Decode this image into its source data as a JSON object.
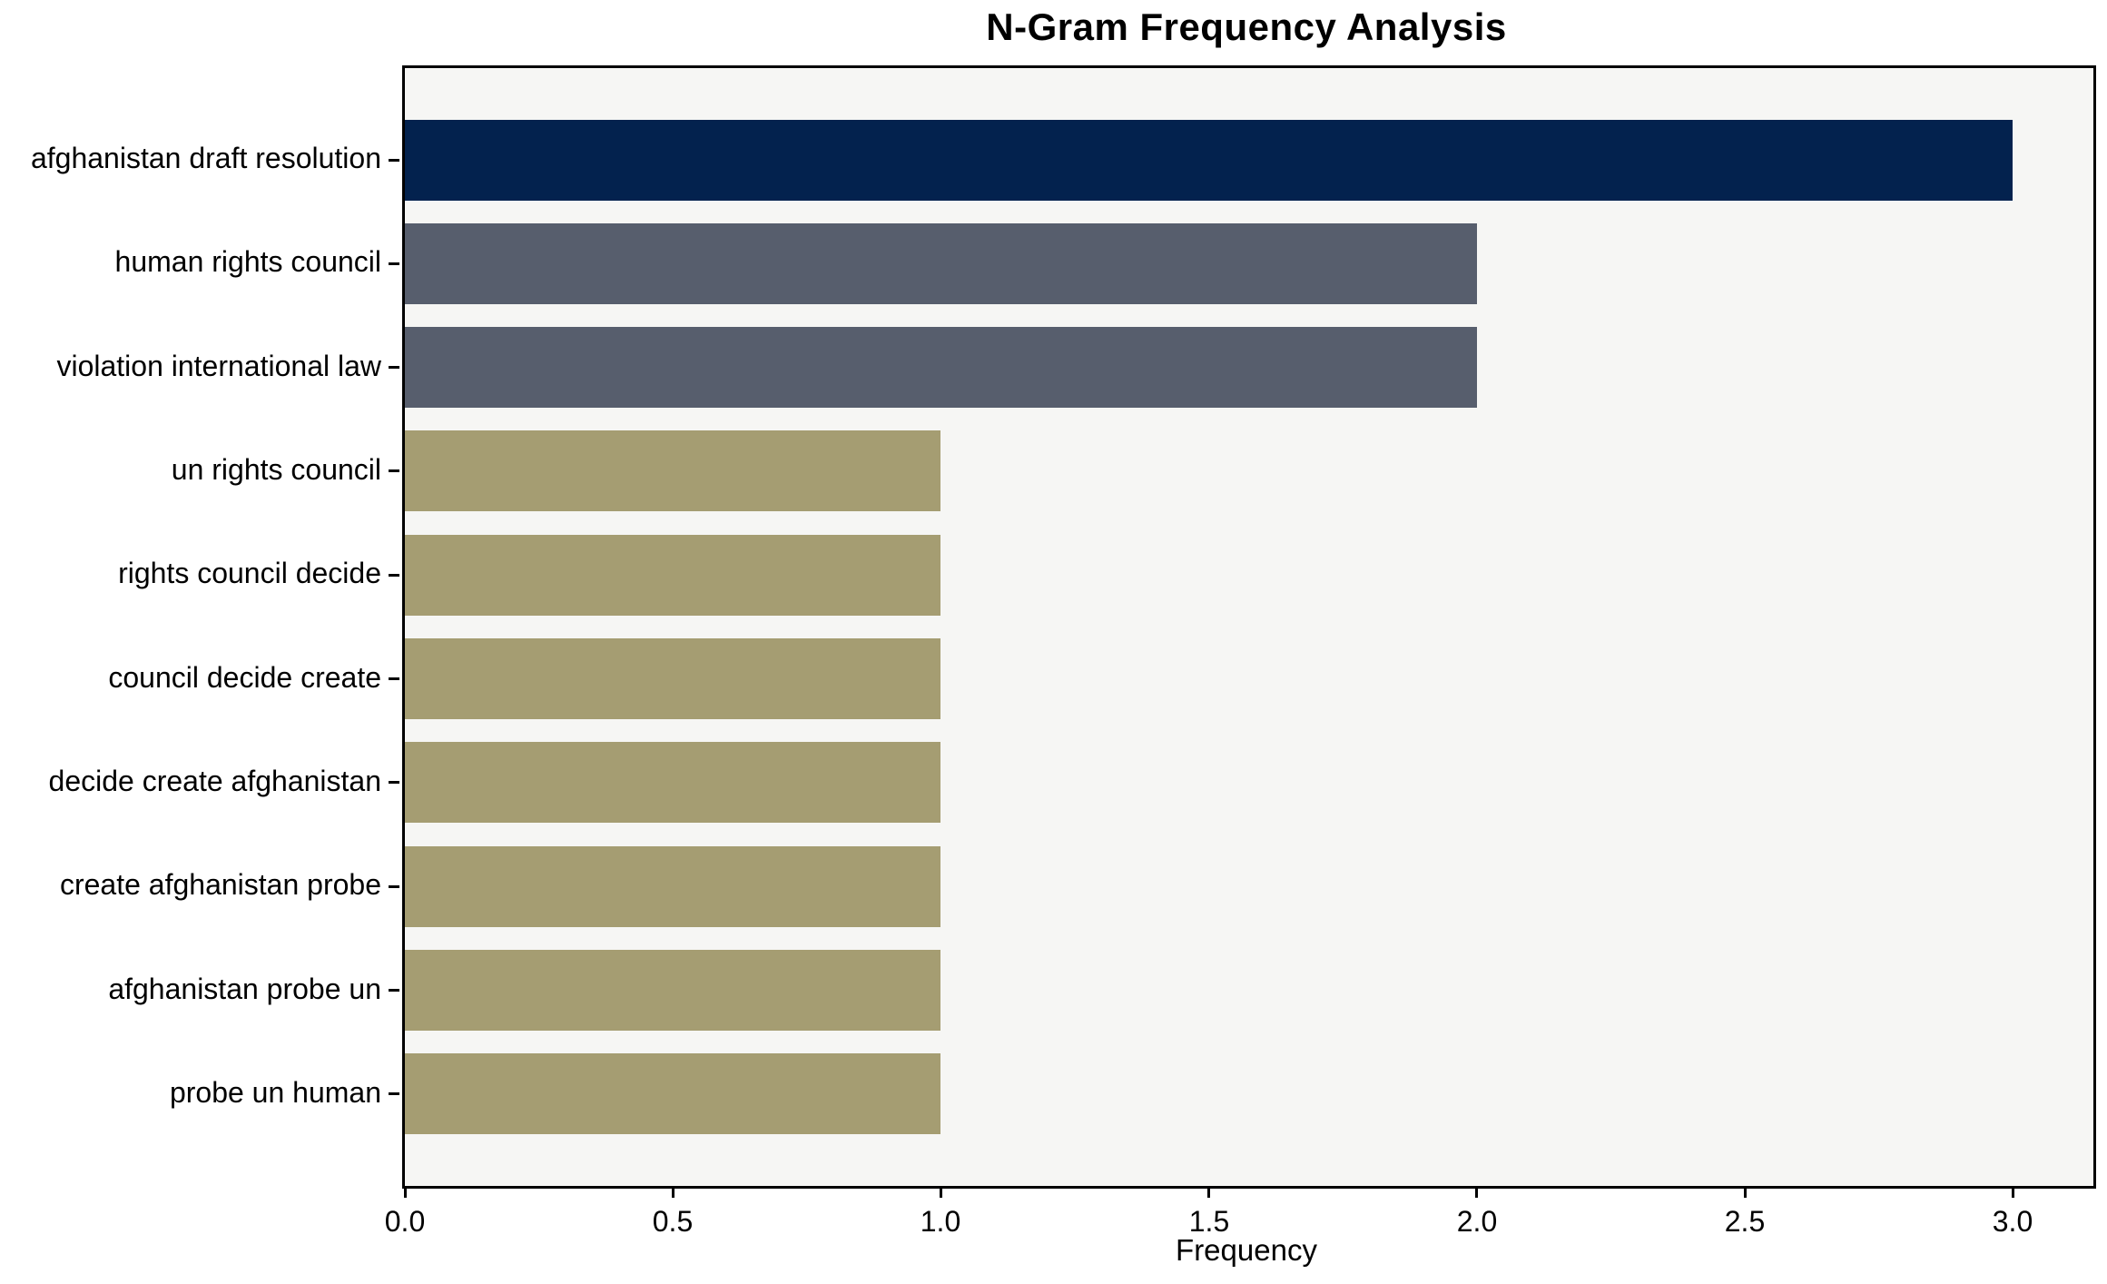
{
  "chart_data": {
    "type": "bar",
    "orientation": "horizontal",
    "title": "N-Gram Frequency Analysis",
    "xlabel": "Frequency",
    "ylabel": "",
    "categories": [
      "afghanistan draft resolution",
      "human rights council",
      "violation international law",
      "un rights council",
      "rights council decide",
      "council decide create",
      "decide create afghanistan",
      "create afghanistan probe",
      "afghanistan probe un",
      "probe un human"
    ],
    "values": [
      3,
      2,
      2,
      1,
      1,
      1,
      1,
      1,
      1,
      1
    ],
    "bar_colors": [
      "#03224e",
      "#575e6d",
      "#575e6d",
      "#a59d72",
      "#a59d72",
      "#a59d72",
      "#a59d72",
      "#a59d72",
      "#a59d72",
      "#a59d72"
    ],
    "xlim": [
      0,
      3.15
    ],
    "xticks": [
      {
        "value": 0.0,
        "label": "0.0"
      },
      {
        "value": 0.5,
        "label": "0.5"
      },
      {
        "value": 1.0,
        "label": "1.0"
      },
      {
        "value": 1.5,
        "label": "1.5"
      },
      {
        "value": 2.0,
        "label": "2.0"
      },
      {
        "value": 2.5,
        "label": "2.5"
      },
      {
        "value": 3.0,
        "label": "3.0"
      }
    ],
    "grid": false,
    "legend_position": "none",
    "plot_background": "#f6f6f4",
    "figure_background": "#ffffff",
    "spine_color": "#000000"
  }
}
